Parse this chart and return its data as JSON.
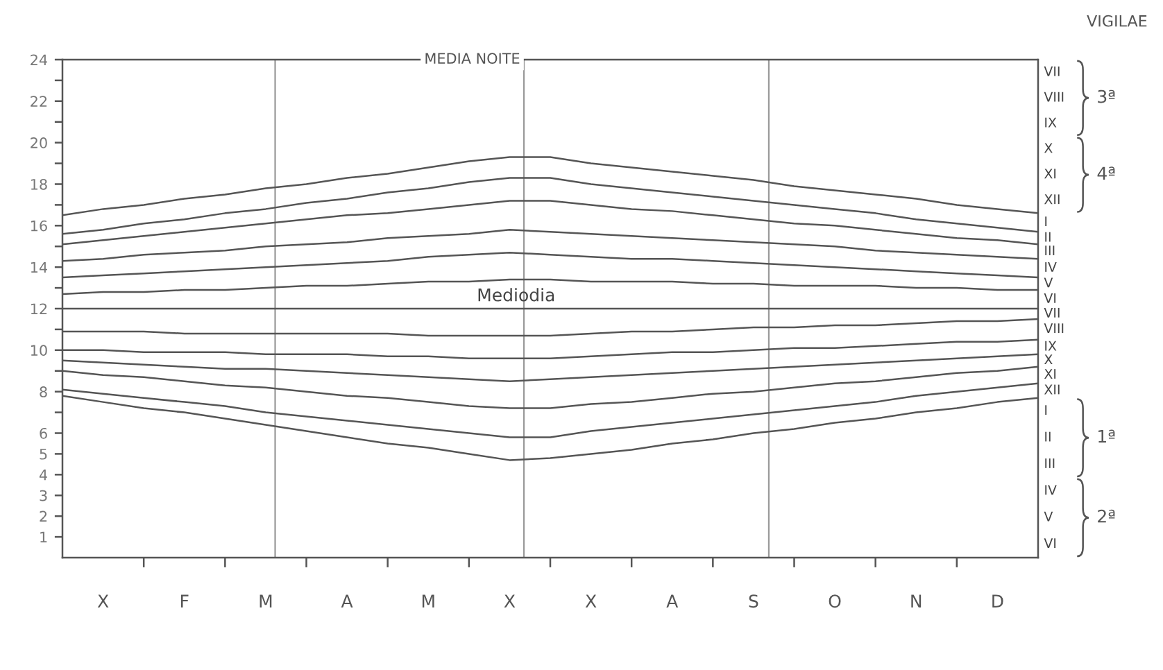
{
  "chart_data": {
    "type": "line",
    "categories": [
      null,
      "X",
      null,
      "F",
      null,
      "M",
      null,
      "A",
      null,
      "M",
      null,
      "X",
      null,
      "X",
      null,
      "A",
      null,
      "S",
      null,
      "O",
      null,
      "N",
      null,
      "D",
      null
    ],
    "series": [
      {
        "color": "#555555",
        "values": [
          16.5,
          16.8,
          17.0,
          17.3,
          17.5,
          17.8,
          18.0,
          18.3,
          18.5,
          18.8,
          19.1,
          19.3,
          19.3,
          19.0,
          18.8,
          18.6,
          18.4,
          18.2,
          17.9,
          17.7,
          17.5,
          17.3,
          17.0,
          16.8,
          16.6
        ]
      },
      {
        "color": "#555555",
        "values": [
          15.6,
          15.8,
          16.1,
          16.3,
          16.6,
          16.8,
          17.1,
          17.3,
          17.6,
          17.8,
          18.1,
          18.3,
          18.3,
          18.0,
          17.8,
          17.6,
          17.4,
          17.2,
          17.0,
          16.8,
          16.6,
          16.3,
          16.1,
          15.9,
          15.7
        ]
      },
      {
        "color": "#555555",
        "values": [
          15.1,
          15.3,
          15.5,
          15.7,
          15.9,
          16.1,
          16.3,
          16.5,
          16.6,
          16.8,
          17.0,
          17.2,
          17.2,
          17.0,
          16.8,
          16.7,
          16.5,
          16.3,
          16.1,
          16.0,
          15.8,
          15.6,
          15.4,
          15.3,
          15.1
        ]
      },
      {
        "color": "#555555",
        "values": [
          14.3,
          14.4,
          14.6,
          14.7,
          14.8,
          15.0,
          15.1,
          15.2,
          15.4,
          15.5,
          15.6,
          15.8,
          15.7,
          15.6,
          15.5,
          15.4,
          15.3,
          15.2,
          15.1,
          15.0,
          14.8,
          14.7,
          14.6,
          14.5,
          14.4
        ]
      },
      {
        "color": "#555555",
        "values": [
          13.5,
          13.6,
          13.7,
          13.8,
          13.9,
          14.0,
          14.1,
          14.2,
          14.3,
          14.5,
          14.6,
          14.7,
          14.6,
          14.5,
          14.4,
          14.4,
          14.3,
          14.2,
          14.1,
          14.0,
          13.9,
          13.8,
          13.7,
          13.6,
          13.5
        ]
      },
      {
        "color": "#555555",
        "values": [
          12.7,
          12.8,
          12.8,
          12.9,
          12.9,
          13.0,
          13.1,
          13.1,
          13.2,
          13.3,
          13.3,
          13.4,
          13.4,
          13.3,
          13.3,
          13.3,
          13.2,
          13.2,
          13.1,
          13.1,
          13.1,
          13.0,
          13.0,
          12.9,
          12.9
        ]
      },
      {
        "color": "#555555",
        "values": [
          12,
          12,
          12,
          12,
          12,
          12,
          12,
          12,
          12,
          12,
          12,
          12,
          12,
          12,
          12,
          12,
          12,
          12,
          12,
          12,
          12,
          12,
          12,
          12,
          12
        ]
      },
      {
        "color": "#555555",
        "values": [
          10.9,
          10.9,
          10.9,
          10.8,
          10.8,
          10.8,
          10.8,
          10.8,
          10.8,
          10.7,
          10.7,
          10.7,
          10.7,
          10.8,
          10.9,
          10.9,
          11.0,
          11.1,
          11.1,
          11.2,
          11.2,
          11.3,
          11.4,
          11.4,
          11.5
        ]
      },
      {
        "color": "#555555",
        "values": [
          10.0,
          10.0,
          9.9,
          9.9,
          9.9,
          9.8,
          9.8,
          9.8,
          9.7,
          9.7,
          9.6,
          9.6,
          9.6,
          9.7,
          9.8,
          9.9,
          9.9,
          10.0,
          10.1,
          10.1,
          10.2,
          10.3,
          10.4,
          10.4,
          10.5
        ]
      },
      {
        "color": "#555555",
        "values": [
          9.5,
          9.4,
          9.3,
          9.2,
          9.1,
          9.1,
          9.0,
          8.9,
          8.8,
          8.7,
          8.6,
          8.5,
          8.6,
          8.7,
          8.8,
          8.9,
          9.0,
          9.1,
          9.2,
          9.3,
          9.4,
          9.5,
          9.6,
          9.7,
          9.8
        ]
      },
      {
        "color": "#555555",
        "values": [
          9.0,
          8.8,
          8.7,
          8.5,
          8.3,
          8.2,
          8.0,
          7.8,
          7.7,
          7.5,
          7.3,
          7.2,
          7.2,
          7.4,
          7.5,
          7.7,
          7.9,
          8.0,
          8.2,
          8.4,
          8.5,
          8.7,
          8.9,
          9.0,
          9.2
        ]
      },
      {
        "color": "#555555",
        "values": [
          8.1,
          7.9,
          7.7,
          7.5,
          7.3,
          7.0,
          6.8,
          6.6,
          6.4,
          6.2,
          6.0,
          5.8,
          5.8,
          6.1,
          6.3,
          6.5,
          6.7,
          6.9,
          7.1,
          7.3,
          7.5,
          7.8,
          8.0,
          8.2,
          8.4
        ]
      },
      {
        "color": "#555555",
        "values": [
          7.8,
          7.5,
          7.2,
          7.0,
          6.7,
          6.4,
          6.1,
          5.8,
          5.5,
          5.3,
          5.0,
          4.7,
          4.8,
          5.0,
          5.2,
          5.5,
          5.7,
          6.0,
          6.2,
          6.5,
          6.7,
          7.0,
          7.2,
          7.5,
          7.7
        ]
      }
    ],
    "ylim": [
      0,
      24
    ],
    "yticks": [
      1,
      2,
      3,
      4,
      5,
      6,
      {
        "value": 7,
        "label": null
      },
      8,
      {
        "value": 9,
        "label": null
      },
      10,
      {
        "value": 11,
        "label": null
      },
      12,
      {
        "value": 13,
        "label": null
      },
      14,
      {
        "value": 15,
        "label": null
      },
      16,
      {
        "value": 17,
        "label": null
      },
      18,
      {
        "value": 19,
        "label": null
      },
      20,
      {
        "value": 21,
        "label": null
      },
      22,
      {
        "value": 23,
        "label": null
      },
      24
    ],
    "ref_lines": [
      {
        "axis": "y",
        "value": 24,
        "label": "MEDIA NOITE",
        "color": "#555555"
      }
    ],
    "annotations": [
      "VIGILAE",
      "VII",
      "VIII",
      "IX",
      "X",
      "XI",
      "XII",
      "I",
      "II",
      "III",
      "IV",
      "V",
      "VI",
      "VII",
      "VIII",
      "IX",
      "X",
      "XI",
      "XII",
      "I",
      "II",
      "III",
      "IV",
      "V",
      "VI",
      "3ª",
      "4ª",
      "1ª",
      "2ª",
      {
        "text": "Mediodia",
        "y": 12
      }
    ],
    "line_style": "solid"
  }
}
